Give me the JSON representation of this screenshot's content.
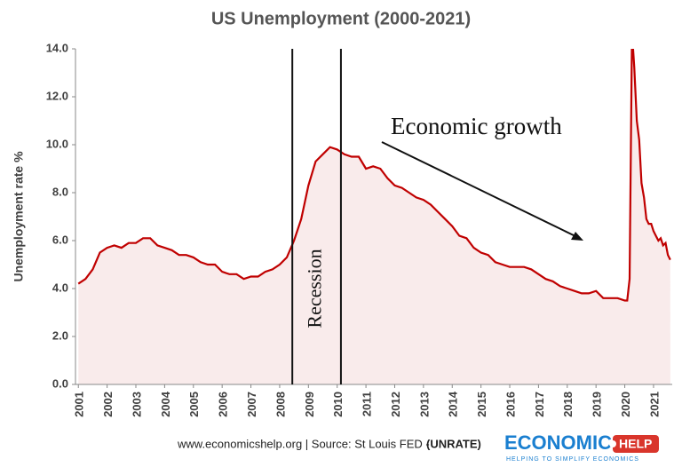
{
  "chart_data": {
    "type": "line",
    "title": "US Unemployment (2000-2021)",
    "y_label": "Unemployment rate %",
    "x": [
      2001,
      2001.25,
      2001.5,
      2001.75,
      2002,
      2002.25,
      2002.5,
      2002.75,
      2003,
      2003.25,
      2003.5,
      2003.75,
      2004,
      2004.25,
      2004.5,
      2004.75,
      2005,
      2005.25,
      2005.5,
      2005.75,
      2006,
      2006.25,
      2006.5,
      2006.75,
      2007,
      2007.25,
      2007.5,
      2007.75,
      2008,
      2008.25,
      2008.5,
      2008.75,
      2009,
      2009.25,
      2009.5,
      2009.75,
      2010,
      2010.25,
      2010.5,
      2010.75,
      2011,
      2011.25,
      2011.5,
      2011.75,
      2012,
      2012.25,
      2012.5,
      2012.75,
      2013,
      2013.25,
      2013.5,
      2013.75,
      2014,
      2014.25,
      2014.5,
      2014.75,
      2015,
      2015.25,
      2015.5,
      2015.75,
      2016,
      2016.25,
      2016.5,
      2016.75,
      2017,
      2017.25,
      2017.5,
      2017.75,
      2018,
      2018.25,
      2018.5,
      2018.75,
      2019,
      2019.25,
      2019.5,
      2019.75,
      2020,
      2020.083,
      2020.167,
      2020.25,
      2020.333,
      2020.417,
      2020.5,
      2020.583,
      2020.667,
      2020.75,
      2020.833,
      2020.917,
      2021,
      2021.083,
      2021.167,
      2021.25,
      2021.333,
      2021.417,
      2021.5,
      2021.583
    ],
    "series": [
      {
        "name": "Unemployment rate",
        "color": "#c00000",
        "values": [
          4.2,
          4.4,
          4.8,
          5.5,
          5.7,
          5.8,
          5.7,
          5.9,
          5.9,
          6.1,
          6.1,
          5.8,
          5.7,
          5.6,
          5.4,
          5.4,
          5.3,
          5.1,
          5.0,
          5.0,
          4.7,
          4.6,
          4.6,
          4.4,
          4.5,
          4.5,
          4.7,
          4.8,
          5.0,
          5.3,
          6.0,
          6.9,
          8.3,
          9.3,
          9.6,
          9.9,
          9.8,
          9.6,
          9.5,
          9.5,
          9.0,
          9.1,
          9.0,
          8.6,
          8.3,
          8.2,
          8.0,
          7.8,
          7.7,
          7.5,
          7.2,
          6.9,
          6.6,
          6.2,
          6.1,
          5.7,
          5.5,
          5.4,
          5.1,
          5.0,
          4.9,
          4.9,
          4.9,
          4.8,
          4.6,
          4.4,
          4.3,
          4.1,
          4.0,
          3.9,
          3.8,
          3.8,
          3.9,
          3.6,
          3.6,
          3.6,
          3.5,
          3.5,
          4.4,
          14.7,
          13.2,
          11.0,
          10.2,
          8.4,
          7.8,
          6.9,
          6.7,
          6.7,
          6.4,
          6.2,
          6.0,
          6.1,
          5.8,
          5.9,
          5.4,
          5.2
        ]
      }
    ],
    "fill": "#f7e3e3",
    "xlim": [
      2000.9,
      2021.65
    ],
    "xticks": [
      2001,
      2002,
      2003,
      2004,
      2005,
      2006,
      2007,
      2008,
      2009,
      2010,
      2011,
      2012,
      2013,
      2014,
      2015,
      2016,
      2017,
      2018,
      2019,
      2020,
      2021
    ],
    "ylim": [
      0,
      14
    ],
    "yticks": [
      {
        "value": 0,
        "label": "0.0"
      },
      {
        "value": 2,
        "label": "2.0"
      },
      {
        "value": 4,
        "label": "4.0"
      },
      {
        "value": 6,
        "label": "6.0"
      },
      {
        "value": 8,
        "label": "8.0"
      },
      {
        "value": 10,
        "label": "10.0"
      },
      {
        "value": 12,
        "label": "12.0"
      },
      {
        "value": 14,
        "label": "14.0"
      }
    ],
    "grid": false,
    "recession": {
      "label": "Recession",
      "x": [
        2008.44,
        2010.13
      ]
    },
    "annotation": "Economic growth"
  },
  "footer": {
    "source": "www.economicshelp.org  |  Source: St Louis FED - ",
    "code": "(UNRATE)"
  },
  "logo": {
    "name": "ECONOMICS",
    "badge": "HELP",
    "tagline": "HELPING TO SIMPLIFY ECONOMICS"
  }
}
